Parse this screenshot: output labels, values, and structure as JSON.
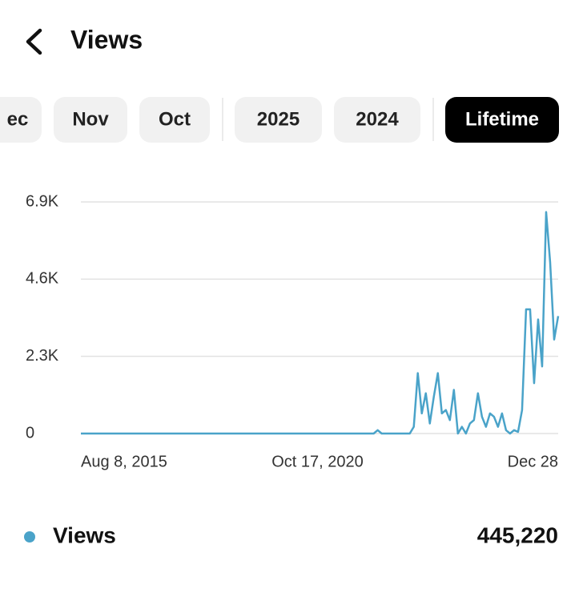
{
  "header": {
    "title": "Views"
  },
  "filters": {
    "options": [
      "ec",
      "Nov",
      "Oct",
      "2025",
      "2024",
      "Lifetime"
    ],
    "selected": 5
  },
  "chart_data": {
    "type": "line",
    "categories": [
      "Aug 8, 2015",
      null,
      null,
      null,
      null,
      null,
      null,
      null,
      null,
      null,
      null,
      null,
      null,
      null,
      null,
      null,
      null,
      null,
      null,
      null,
      null,
      null,
      null,
      null,
      null,
      null,
      null,
      null,
      null,
      null,
      null,
      null,
      null,
      null,
      null,
      null,
      null,
      null,
      null,
      null,
      null,
      null,
      null,
      null,
      null,
      null,
      null,
      null,
      null,
      null,
      null,
      null,
      null,
      null,
      null,
      null,
      null,
      null,
      null,
      "Oct 17, 2020",
      null,
      null,
      null,
      null,
      null,
      null,
      null,
      null,
      null,
      null,
      null,
      null,
      null,
      null,
      null,
      null,
      null,
      null,
      null,
      null,
      null,
      null,
      null,
      null,
      null,
      null,
      null,
      null,
      null,
      null,
      null,
      null,
      null,
      null,
      null,
      null,
      null,
      null,
      null,
      null,
      null,
      null,
      null,
      null,
      null,
      null,
      null,
      null,
      null,
      null,
      null,
      null,
      null,
      null,
      null,
      null,
      null,
      null,
      null,
      "Dec 28"
    ],
    "series": [
      {
        "name": "Views",
        "color": "#4aa3c9",
        "values": [
          0,
          0,
          0,
          0,
          0,
          0,
          0,
          0,
          0,
          0,
          0,
          0,
          0,
          0,
          0,
          0,
          0,
          0,
          0,
          0,
          0,
          0,
          0,
          0,
          0,
          0,
          0,
          0,
          0,
          0,
          0,
          0,
          0,
          0,
          0,
          0,
          0,
          0,
          0,
          0,
          0,
          0,
          0,
          0,
          0,
          0,
          0,
          0,
          0,
          0,
          0,
          0,
          0,
          0,
          0,
          0,
          0,
          0,
          0,
          0,
          0,
          0,
          0,
          0,
          0,
          0,
          0,
          0,
          0,
          0,
          0,
          0,
          0,
          0,
          100,
          0,
          0,
          0,
          0,
          0,
          0,
          0,
          0,
          200,
          1800,
          600,
          1200,
          300,
          1100,
          1800,
          600,
          700,
          400,
          1300,
          0,
          200,
          0,
          300,
          400,
          1200,
          500,
          200,
          600,
          500,
          200,
          600,
          100,
          0,
          100,
          50,
          700,
          3700,
          3700,
          1500,
          3400,
          2000,
          6600,
          5100,
          2800,
          3500
        ]
      }
    ],
    "ylim": [
      0,
      6900
    ],
    "yticks": [
      0,
      {
        "value": 2300,
        "label": "2.3K"
      },
      {
        "value": 4600,
        "label": "4.6K"
      },
      {
        "value": 6900,
        "label": "6.9K"
      }
    ],
    "grid": true,
    "total": "445,220"
  }
}
